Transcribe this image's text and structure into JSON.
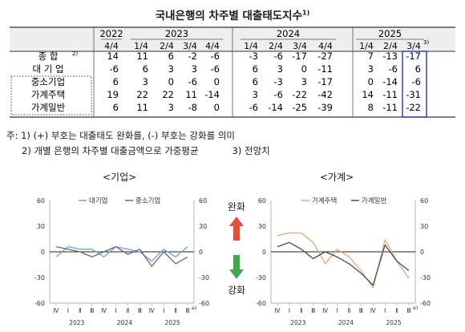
{
  "title": "국내은행의 차주별 대출태도지수",
  "title_note": "1)",
  "table": {
    "years": [
      {
        "label": "2022"
      },
      {
        "label": "2023"
      },
      {
        "label": "2024"
      },
      {
        "label": "2025"
      }
    ],
    "quarters": [
      "4/4",
      "1/4",
      "2/4",
      "3/4",
      "4/4",
      "1/4",
      "2/4",
      "3/4",
      "4/4",
      "1/4",
      "2/4",
      "3/4"
    ],
    "last_quarter_note": "3)",
    "rows": [
      {
        "label": "종      합",
        "note": "2)",
        "values": [
          "14",
          "11",
          "6",
          "-2",
          "-6",
          "-3",
          "-6",
          "-17",
          "-27",
          "7",
          "-13",
          "-17"
        ]
      },
      {
        "label": "대 기 업",
        "note": "",
        "values": [
          "-6",
          "6",
          "3",
          "3",
          "-6",
          "6",
          "3",
          "0",
          "-11",
          "3",
          "-6",
          "6"
        ]
      },
      {
        "label": "중소기업",
        "note": "",
        "values": [
          "6",
          "3",
          "0",
          "-6",
          "0",
          "6",
          "-3",
          "3",
          "-17",
          "0",
          "-14",
          "-6"
        ]
      },
      {
        "label": "가계주택",
        "note": "",
        "values": [
          "19",
          "22",
          "22",
          "11",
          "-14",
          "3",
          "-6",
          "-22",
          "-42",
          "14",
          "-11",
          "-31"
        ]
      },
      {
        "label": "가계일반",
        "note": "",
        "values": [
          "6",
          "11",
          "3",
          "-8",
          "0",
          "-6",
          "-14",
          "-25",
          "-39",
          "8",
          "-11",
          "-22"
        ]
      }
    ]
  },
  "notes": {
    "line1": "주: 1) (+) 부호는 대출태도 완화를, (-) 부호는 강화를 의미",
    "line2a": "2) 개별 은행의 차주별 대출금액으로 가중평균",
    "line2b": "3) 전망치"
  },
  "middle": {
    "ease_label": "완화",
    "tight_label": "강화",
    "ease_color": "#e74c3c",
    "tight_color": "#3aaa4a"
  },
  "chart_data": [
    {
      "type": "line",
      "title": "<기업>",
      "categories": [
        "Ⅳ",
        "Ⅰ",
        "Ⅱ",
        "Ⅲ",
        "Ⅳ",
        "Ⅰ",
        "Ⅱ",
        "Ⅲ",
        "Ⅳ",
        "Ⅰ",
        "Ⅱ",
        "Ⅲ"
      ],
      "year_labels": [
        "2023",
        "2024",
        "2025"
      ],
      "forecast_note": "e)",
      "ylim": [
        -60,
        60
      ],
      "yticks": [
        -60,
        -30,
        0,
        30,
        60
      ],
      "legend_position": "top",
      "series": [
        {
          "name": "대기업",
          "color": "#6fa0dc",
          "values": [
            -6,
            6,
            3,
            3,
            -6,
            6,
            3,
            0,
            -11,
            3,
            -6,
            6
          ]
        },
        {
          "name": "중소기업",
          "color": "#6b6b6b",
          "values": [
            6,
            3,
            0,
            -6,
            0,
            6,
            -3,
            3,
            -17,
            0,
            -14,
            -6
          ]
        }
      ]
    },
    {
      "type": "line",
      "title": "<가계>",
      "categories": [
        "Ⅳ",
        "Ⅰ",
        "Ⅱ",
        "Ⅲ",
        "Ⅳ",
        "Ⅰ",
        "Ⅱ",
        "Ⅲ",
        "Ⅳ",
        "Ⅰ",
        "Ⅱ",
        "Ⅲ"
      ],
      "year_labels": [
        "2023",
        "2024",
        "2025"
      ],
      "forecast_note": "e)",
      "ylim": [
        -60,
        60
      ],
      "yticks": [
        -60,
        -30,
        0,
        30,
        60
      ],
      "legend_position": "top",
      "series": [
        {
          "name": "가계주택",
          "color": "#f0a46e",
          "values": [
            19,
            22,
            22,
            11,
            -14,
            3,
            -6,
            -22,
            -42,
            14,
            -11,
            -31
          ]
        },
        {
          "name": "가계일반",
          "color": "#4a4a4a",
          "values": [
            6,
            11,
            3,
            -8,
            0,
            -6,
            -14,
            -25,
            -39,
            8,
            -11,
            -22
          ]
        }
      ]
    }
  ]
}
